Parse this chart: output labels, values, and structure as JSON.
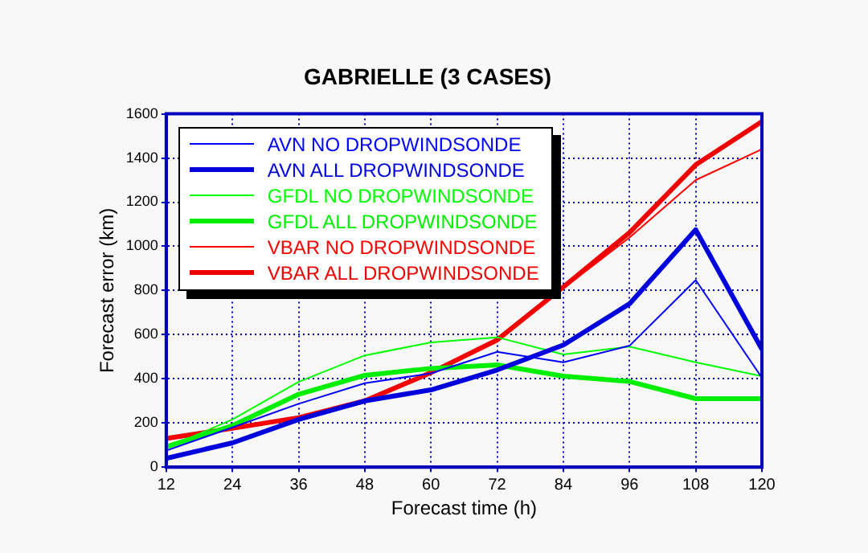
{
  "chart_data": {
    "type": "line",
    "title": "GABRIELLE (3 CASES)",
    "xlabel": "Forecast time (h)",
    "ylabel": "Forecast error (km)",
    "x": [
      12,
      24,
      36,
      48,
      60,
      72,
      84,
      96,
      108,
      120
    ],
    "series": [
      {
        "name": "AVN NO DROPWINDSONDE",
        "color": "#0000ff",
        "values": [
          75,
          180,
          287,
          380,
          425,
          522,
          475,
          550,
          847,
          405
        ]
      },
      {
        "name": "AVN ALL DROPWINDSONDE",
        "color": "#0000dd",
        "values": [
          40,
          110,
          216,
          300,
          350,
          440,
          553,
          740,
          1075,
          534
        ]
      },
      {
        "name": "GFDL NO DROPWINDSONDE",
        "color": "#00ff00",
        "values": [
          87,
          216,
          386,
          506,
          565,
          588,
          510,
          546,
          475,
          412
        ]
      },
      {
        "name": "GFDL ALL DROPWINDSONDE",
        "color": "#00ee00",
        "values": [
          92,
          188,
          330,
          416,
          447,
          463,
          412,
          388,
          310,
          310
        ]
      },
      {
        "name": "VBAR NO DROPWINDSONDE",
        "color": "#ff0000",
        "values": [
          130,
          176,
          224,
          300,
          428,
          570,
          810,
          1040,
          1300,
          1440
        ]
      },
      {
        "name": "VBAR ALL DROPWINDSONDE",
        "color": "#ee0000",
        "values": [
          130,
          176,
          224,
          300,
          428,
          576,
          816,
          1062,
          1369,
          1565
        ]
      }
    ],
    "xlim": [
      12,
      120
    ],
    "xticks": [
      12,
      24,
      36,
      48,
      60,
      72,
      84,
      96,
      108,
      120
    ],
    "ylim": [
      0,
      1600
    ],
    "yticks": [
      0,
      200,
      400,
      600,
      800,
      1000,
      1200,
      1400,
      1600
    ],
    "grid": true,
    "legend": "top left",
    "marker": "none",
    "line_style": "solid"
  }
}
